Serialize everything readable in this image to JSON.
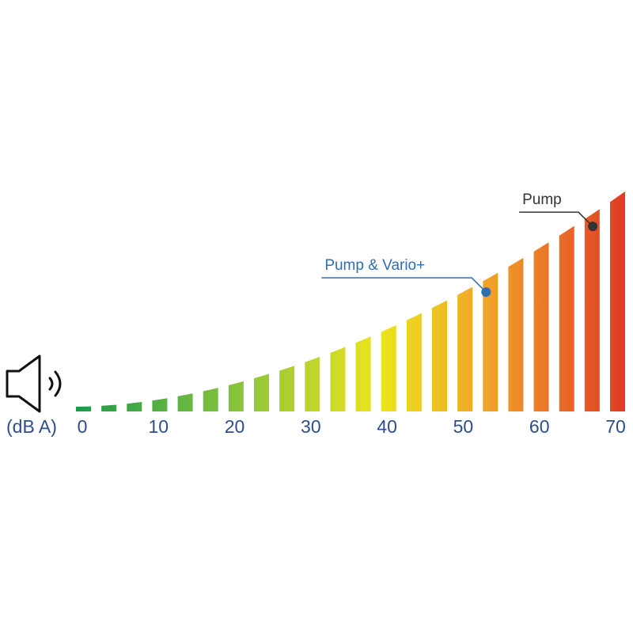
{
  "chart_data": {
    "type": "scale",
    "axis_label": "(dB A)",
    "xlim": [
      0,
      70
    ],
    "xticks": [
      0,
      10,
      20,
      30,
      40,
      50,
      60,
      70
    ],
    "markers": [
      {
        "label": "Pump & Vario+",
        "value": 53,
        "color": "#2f6db5"
      },
      {
        "label": "Pump",
        "value": 67,
        "color": "#333333"
      }
    ]
  }
}
